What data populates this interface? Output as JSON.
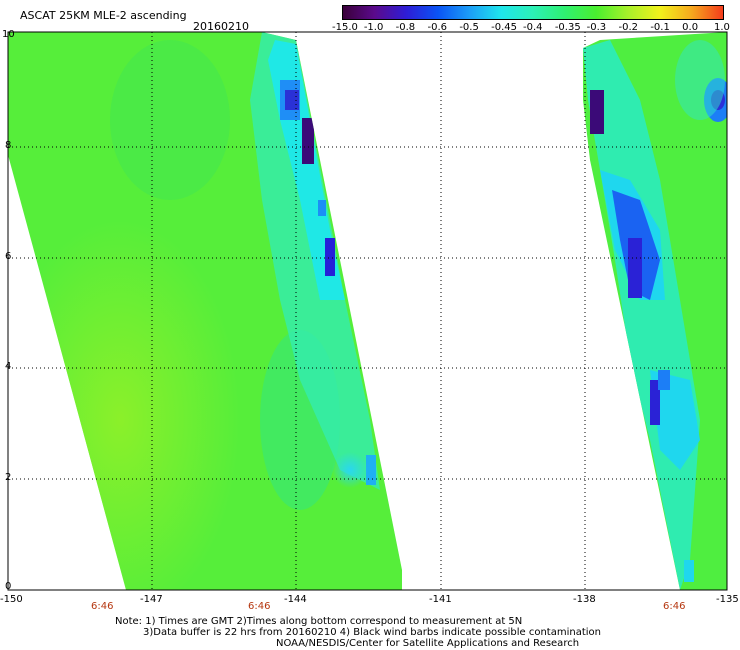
{
  "header": {
    "title": "ASCAT 25KM MLE-2 ascending",
    "date": "20160210"
  },
  "colorbar": {
    "labels": [
      "-15.0",
      "-1.0",
      "-0.8",
      "-0.6",
      "-0.5",
      "-0.45",
      "-0.4",
      "-0.35",
      "-0.3",
      "-0.2",
      "-0.1",
      "0.0",
      "1.0"
    ],
    "colors": [
      "#3a003a",
      "#5b0a8c",
      "#2e1dd6",
      "#0a54f5",
      "#1c9ef7",
      "#1fe6ec",
      "#2cf0b6",
      "#2ff071",
      "#4aef2f",
      "#a8f02a",
      "#f1f21c",
      "#f6a91e",
      "#f43c1c"
    ]
  },
  "map": {
    "lon_ticks": [
      "-150",
      "-147",
      "-144",
      "-141",
      "-138",
      "-135"
    ],
    "lat_ticks": [
      "0",
      "2",
      "4",
      "6",
      "8",
      "10"
    ],
    "time_labels": [
      "6:46",
      "6:46",
      "6:46"
    ]
  },
  "footer": {
    "line1": "Note: 1) Times are GMT 2)Times along bottom correspond to measurement at 5N",
    "line2": "3)Data buffer is 22 hrs from 20160210 4) Black wind barbs indicate possible contamination",
    "line3": "NOAA/NESDIS/Center for Satellite Applications and Research"
  }
}
